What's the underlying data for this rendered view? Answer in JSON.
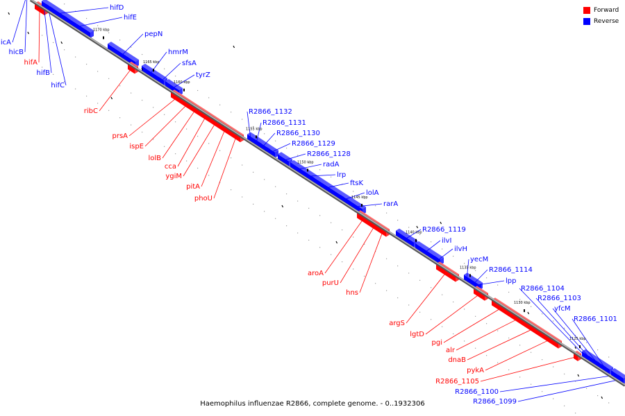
{
  "colors": {
    "forward": "#ff0000",
    "reverse": "#0000ff",
    "forward_top": "#ff6a6a",
    "reverse_top": "#5a5aff",
    "backbone": "#808080"
  },
  "legend": [
    {
      "label": "Forward",
      "color": "#ff0000"
    },
    {
      "label": "Reverse",
      "color": "#0000ff"
    }
  ],
  "caption": "Haemophilus influenzae R2866, complete genome. - 0..1932306",
  "ticks": [
    "1170 kbp",
    "1165 kbp",
    "1160 kbp",
    "1155 kbp",
    "1150 kbp",
    "1145 kbp",
    "1140 kbp",
    "1135 kbp",
    "1130 kbp",
    "1125 kbp"
  ],
  "genes": [
    {
      "name": "hicA",
      "strand": "reverse"
    },
    {
      "name": "hicB",
      "strand": "reverse"
    },
    {
      "name": "hifA",
      "strand": "forward"
    },
    {
      "name": "hifB",
      "strand": "reverse"
    },
    {
      "name": "hifC",
      "strand": "reverse"
    },
    {
      "name": "hifD",
      "strand": "reverse"
    },
    {
      "name": "hifE",
      "strand": "reverse"
    },
    {
      "name": "pepN",
      "strand": "reverse"
    },
    {
      "name": "hmrM",
      "strand": "reverse"
    },
    {
      "name": "sfsA",
      "strand": "reverse"
    },
    {
      "name": "tyrZ",
      "strand": "reverse"
    },
    {
      "name": "ribC",
      "strand": "forward"
    },
    {
      "name": "prsA",
      "strand": "forward"
    },
    {
      "name": "ispE",
      "strand": "forward"
    },
    {
      "name": "lolB",
      "strand": "forward"
    },
    {
      "name": "cca",
      "strand": "forward"
    },
    {
      "name": "ygiM",
      "strand": "forward"
    },
    {
      "name": "pitA",
      "strand": "forward"
    },
    {
      "name": "phoU",
      "strand": "forward"
    },
    {
      "name": "R2866_1132",
      "strand": "reverse"
    },
    {
      "name": "R2866_1131",
      "strand": "reverse"
    },
    {
      "name": "R2866_1130",
      "strand": "reverse"
    },
    {
      "name": "R2866_1129",
      "strand": "reverse"
    },
    {
      "name": "R2866_1128",
      "strand": "reverse"
    },
    {
      "name": "radA",
      "strand": "reverse"
    },
    {
      "name": "lrp",
      "strand": "reverse"
    },
    {
      "name": "ftsK",
      "strand": "reverse"
    },
    {
      "name": "lolA",
      "strand": "reverse"
    },
    {
      "name": "rarA",
      "strand": "reverse"
    },
    {
      "name": "R2866_1119",
      "strand": "reverse"
    },
    {
      "name": "ilvI",
      "strand": "reverse"
    },
    {
      "name": "ilvH",
      "strand": "reverse"
    },
    {
      "name": "yecM",
      "strand": "reverse"
    },
    {
      "name": "R2866_1114",
      "strand": "reverse"
    },
    {
      "name": "lpp",
      "strand": "reverse"
    },
    {
      "name": "R2866_1104",
      "strand": "reverse"
    },
    {
      "name": "R2866_1103",
      "strand": "reverse"
    },
    {
      "name": "yfcM",
      "strand": "reverse"
    },
    {
      "name": "R2866_1101",
      "strand": "reverse"
    },
    {
      "name": "aroA",
      "strand": "forward"
    },
    {
      "name": "purU",
      "strand": "forward"
    },
    {
      "name": "hns",
      "strand": "forward"
    },
    {
      "name": "argS",
      "strand": "forward"
    },
    {
      "name": "lgtD",
      "strand": "forward"
    },
    {
      "name": "pgi",
      "strand": "forward"
    },
    {
      "name": "alr",
      "strand": "forward"
    },
    {
      "name": "dnaB",
      "strand": "forward"
    },
    {
      "name": "pykA",
      "strand": "forward"
    },
    {
      "name": "R2866_1105",
      "strand": "forward"
    },
    {
      "name": "R2866_1100",
      "strand": "reverse"
    },
    {
      "name": "R2866_1099",
      "strand": "reverse"
    }
  ]
}
